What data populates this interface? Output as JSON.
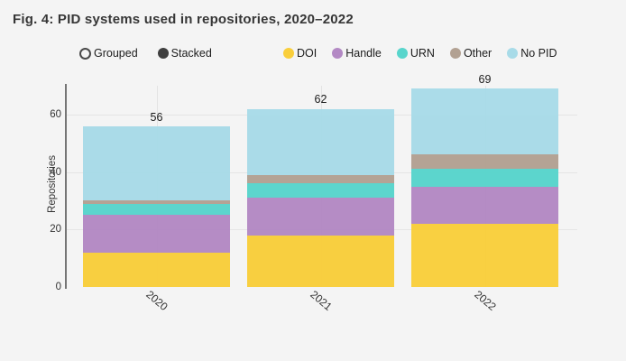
{
  "title": "Fig. 4: PID systems used in repositories, 2020–2022",
  "mode_toggle": {
    "options": [
      {
        "label": "Grouped",
        "selected": false
      },
      {
        "label": "Stacked",
        "selected": true
      }
    ]
  },
  "chart_data": {
    "type": "bar",
    "stacked": true,
    "title": "Fig. 4: PID systems used in repositories, 2020–2022",
    "categories": [
      "2020",
      "2021",
      "2022"
    ],
    "series": [
      {
        "name": "DOI",
        "color": "#F9CE3B",
        "values": [
          12,
          18,
          22
        ]
      },
      {
        "name": "Handle",
        "color": "#B389C4",
        "values": [
          13,
          13,
          13
        ]
      },
      {
        "name": "URN",
        "color": "#58D5CC",
        "values": [
          4,
          5,
          6
        ]
      },
      {
        "name": "Other",
        "color": "#B2A192",
        "values": [
          1,
          3,
          5
        ]
      },
      {
        "name": "No PID",
        "color": "#A8DBE8",
        "values": [
          26,
          23,
          23
        ]
      }
    ],
    "totals": [
      56,
      62,
      69
    ],
    "xlabel": "",
    "ylabel": "Repositories",
    "yticks": [
      0,
      20,
      40,
      60
    ],
    "ylim": [
      0,
      70
    ],
    "grid": true,
    "legend_position": "top"
  },
  "colors": {
    "background": "#f4f4f4",
    "axis_line": "#757575",
    "gridline": "#e5e5e5",
    "title_text": "#363636",
    "stacked_marker": "#3f3f3f"
  }
}
